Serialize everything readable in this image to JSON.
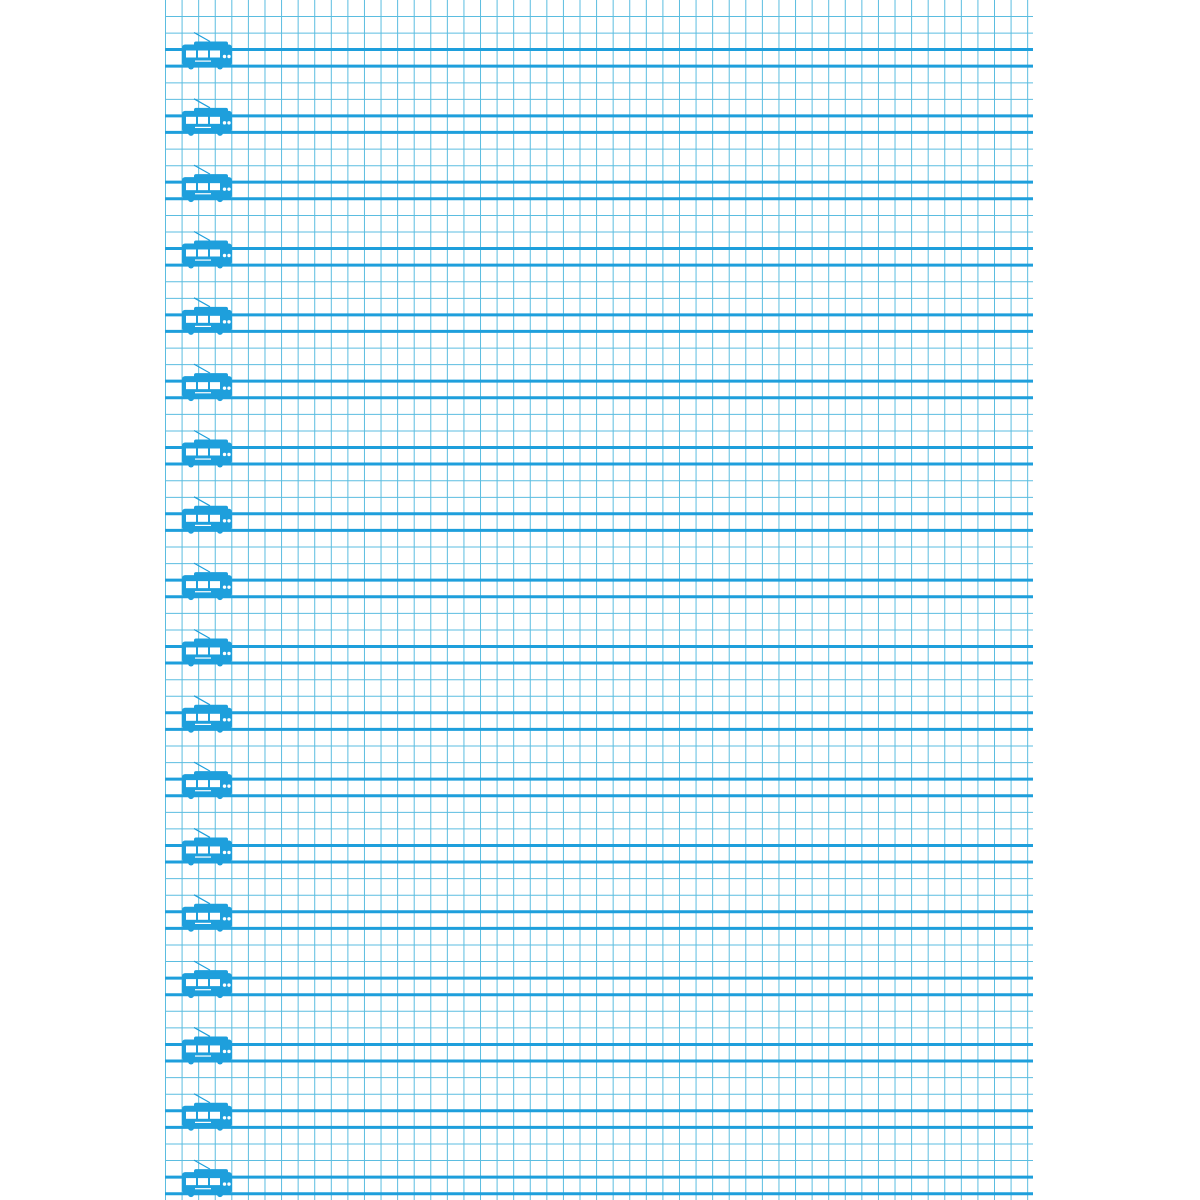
{
  "page": {
    "type": "ruled grid notebook page",
    "grid_color": "#5bbde0",
    "rule_color": "#1e9fdc",
    "icon": "trolleybus-icon",
    "icon_color": "#1e9fdc",
    "row_count": 18,
    "cells_per_row_band": 4
  }
}
